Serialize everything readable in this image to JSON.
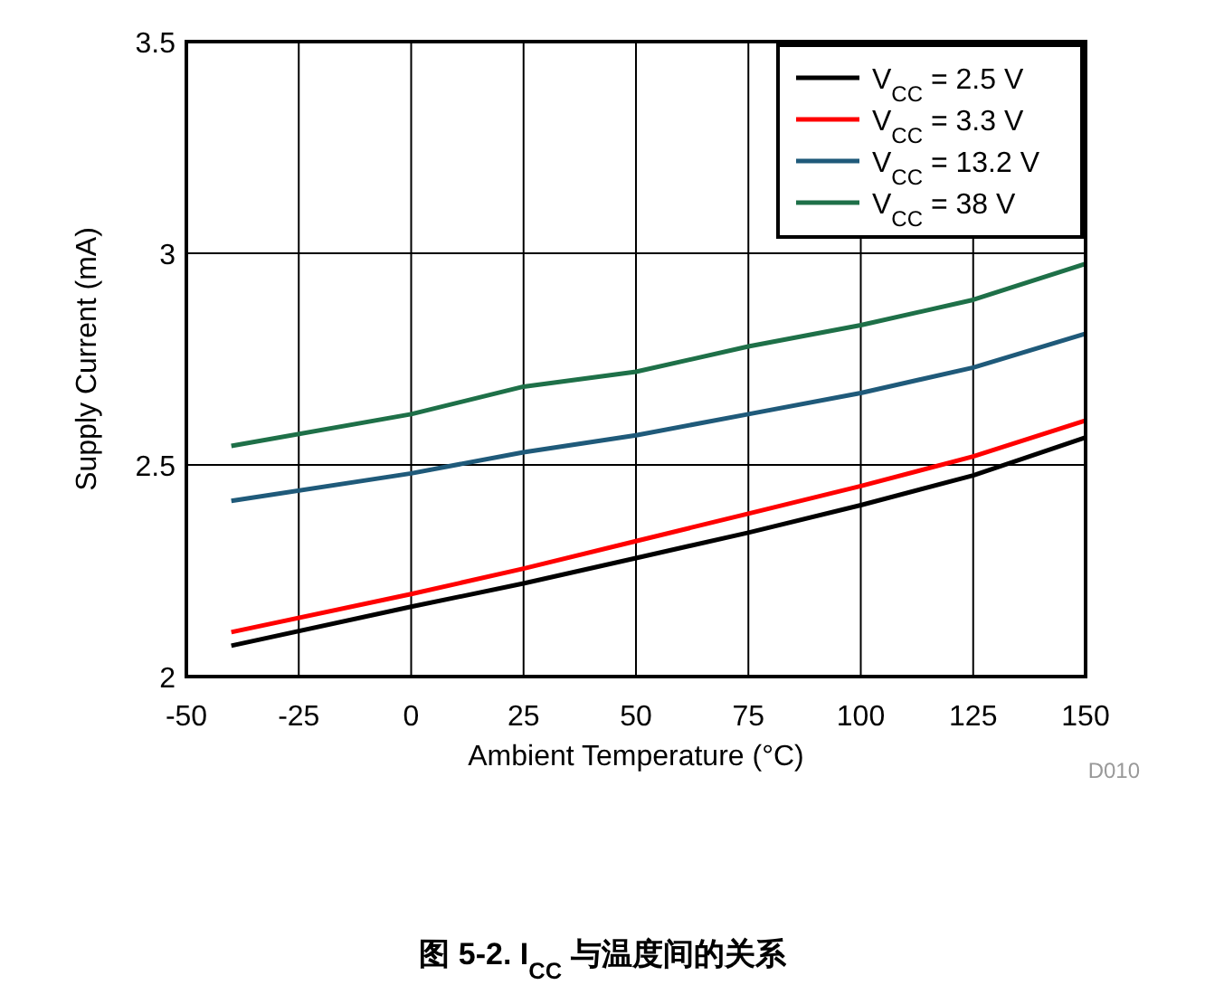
{
  "chart_data": {
    "type": "line",
    "title": "图 5-2. I$_{CC}$ 与温度间的关系",
    "xlabel": "Ambient Temperature (°C)",
    "ylabel": "Supply Current (mA)",
    "x": [
      -40,
      0,
      25,
      50,
      75,
      100,
      125,
      150
    ],
    "series": [
      {
        "name": "V$_{CC}$ = 2.5 V",
        "color": "#000000",
        "values": [
          2.073,
          2.165,
          2.22,
          2.28,
          2.34,
          2.405,
          2.475,
          2.565
        ]
      },
      {
        "name": "V$_{CC}$ = 3.3 V",
        "color": "#ff0000",
        "values": [
          2.105,
          2.195,
          2.255,
          2.32,
          2.385,
          2.45,
          2.52,
          2.605
        ]
      },
      {
        "name": "V$_{CC}$ = 13.2 V",
        "color": "#1f5a7a",
        "values": [
          2.415,
          2.48,
          2.53,
          2.57,
          2.62,
          2.67,
          2.73,
          2.81
        ]
      },
      {
        "name": "V$_{CC}$ = 38 V",
        "color": "#1e7048",
        "values": [
          2.545,
          2.62,
          2.685,
          2.72,
          2.78,
          2.83,
          2.89,
          2.975
        ]
      }
    ],
    "xlim": [
      -50,
      150
    ],
    "xticks": [
      -50,
      -25,
      0,
      25,
      50,
      75,
      100,
      125,
      150
    ],
    "ylim": [
      2,
      3.5
    ],
    "yticks": [
      2,
      2.5,
      3,
      3.5
    ],
    "grid": true,
    "legend": "top right",
    "line_style": "solid",
    "annotations": [
      "D010"
    ]
  }
}
